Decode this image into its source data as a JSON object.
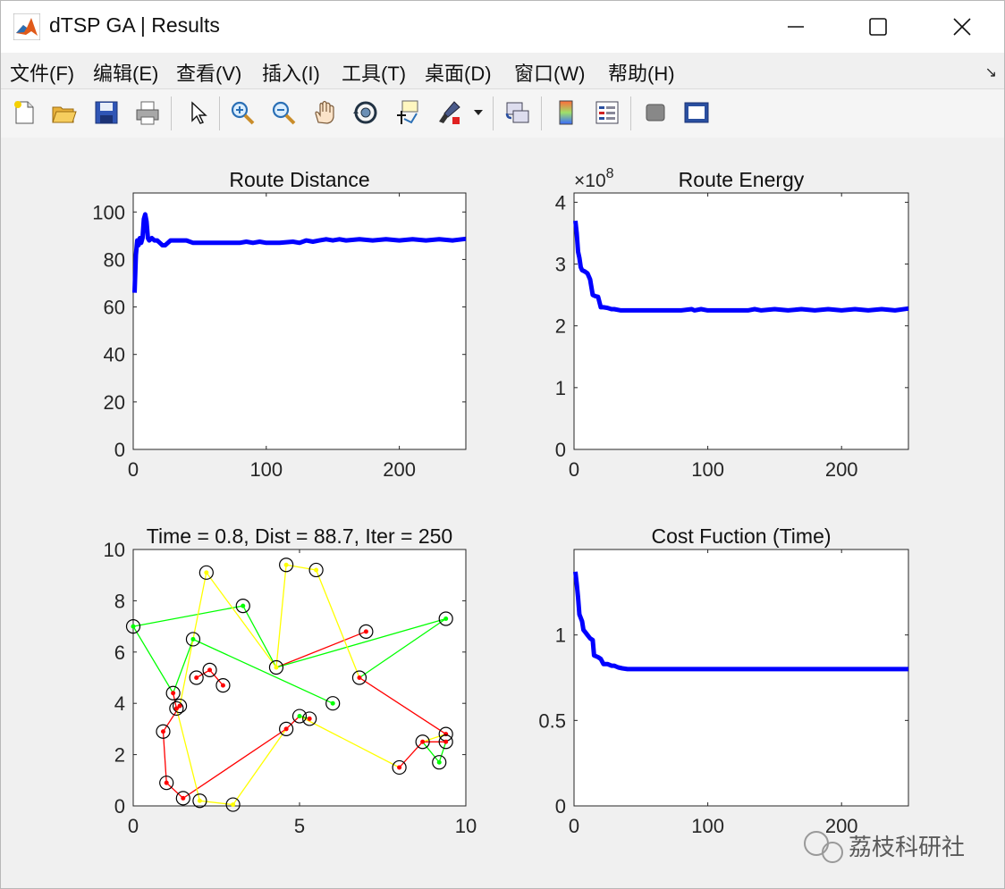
{
  "window": {
    "title": "dTSP GA | Results",
    "controls": {
      "minimize": "—",
      "maximize": "☐",
      "close": "✕"
    }
  },
  "menu": {
    "items": [
      "文件(F)",
      "编辑(E)",
      "查看(V)",
      "插入(I)",
      "工具(T)",
      "桌面(D)",
      "窗口(W)",
      "帮助(H)"
    ],
    "overflow_arrow": "↘"
  },
  "toolbar": {
    "icons": [
      "new-figure-icon",
      "open-file-icon",
      "save-icon",
      "print-icon",
      "pointer-icon",
      "zoom-in-icon",
      "zoom-out-icon",
      "pan-hand-icon",
      "rotate-3d-icon",
      "data-cursor-icon",
      "brush-icon",
      "link-plot-icon",
      "colorbar-icon",
      "legend-icon",
      "hide-plot-tools-icon",
      "show-plot-tools-icon"
    ]
  },
  "colors": {
    "line": "#0000ff",
    "route_red": "#ff0000",
    "route_green": "#00ff00",
    "route_yellow": "#ffff00",
    "axes_bg": "#ffffff"
  },
  "watermark": {
    "text": "荔枝科研社"
  },
  "chart_data": [
    {
      "id": "distance",
      "type": "line",
      "title": "Route Distance",
      "xlim": [
        0,
        250
      ],
      "ylim": [
        0,
        108
      ],
      "xticks": [
        0,
        100,
        200
      ],
      "yticks": [
        0,
        20,
        40,
        60,
        80,
        100
      ],
      "series": [
        {
          "points": [
            [
              1,
              66
            ],
            [
              2,
              82
            ],
            [
              3,
              88
            ],
            [
              4,
              86
            ],
            [
              5,
              89
            ],
            [
              6,
              87
            ],
            [
              7,
              89
            ],
            [
              8,
              97
            ],
            [
              9,
              99
            ],
            [
              10,
              96
            ],
            [
              11,
              89
            ],
            [
              12,
              88
            ],
            [
              14,
              89
            ],
            [
              16,
              88
            ],
            [
              18,
              88
            ],
            [
              20,
              87
            ],
            [
              22,
              86
            ],
            [
              24,
              86
            ],
            [
              26,
              87
            ],
            [
              28,
              88
            ],
            [
              30,
              88
            ],
            [
              35,
              88
            ],
            [
              40,
              88
            ],
            [
              45,
              87
            ],
            [
              50,
              87
            ],
            [
              60,
              87
            ],
            [
              70,
              87
            ],
            [
              80,
              87
            ],
            [
              85,
              87.5
            ],
            [
              90,
              87
            ],
            [
              95,
              87.5
            ],
            [
              100,
              87
            ],
            [
              110,
              87
            ],
            [
              120,
              87.5
            ],
            [
              125,
              87
            ],
            [
              130,
              88
            ],
            [
              135,
              87.5
            ],
            [
              140,
              88
            ],
            [
              145,
              88.5
            ],
            [
              150,
              88
            ],
            [
              155,
              88.5
            ],
            [
              160,
              88
            ],
            [
              170,
              88.5
            ],
            [
              180,
              88
            ],
            [
              190,
              88.5
            ],
            [
              200,
              88
            ],
            [
              210,
              88.5
            ],
            [
              220,
              88
            ],
            [
              230,
              88.5
            ],
            [
              240,
              88
            ],
            [
              250,
              88.7
            ]
          ]
        }
      ]
    },
    {
      "id": "energy",
      "type": "line",
      "title": "Route Energy",
      "exponent_label": "×10",
      "exponent_power": "8",
      "xlim": [
        0,
        250
      ],
      "ylim": [
        0,
        4.15
      ],
      "xticks": [
        0,
        100,
        200
      ],
      "yticks": [
        0,
        1,
        2,
        3,
        4
      ],
      "series": [
        {
          "points": [
            [
              1,
              3.7
            ],
            [
              2,
              3.5
            ],
            [
              3,
              3.2
            ],
            [
              4,
              3.1
            ],
            [
              5,
              2.95
            ],
            [
              6,
              2.9
            ],
            [
              8,
              2.88
            ],
            [
              10,
              2.85
            ],
            [
              12,
              2.75
            ],
            [
              14,
              2.5
            ],
            [
              16,
              2.48
            ],
            [
              18,
              2.47
            ],
            [
              20,
              2.3
            ],
            [
              22,
              2.3
            ],
            [
              25,
              2.29
            ],
            [
              28,
              2.27
            ],
            [
              30,
              2.27
            ],
            [
              35,
              2.25
            ],
            [
              40,
              2.25
            ],
            [
              50,
              2.25
            ],
            [
              60,
              2.25
            ],
            [
              70,
              2.25
            ],
            [
              80,
              2.25
            ],
            [
              88,
              2.27
            ],
            [
              90,
              2.25
            ],
            [
              95,
              2.27
            ],
            [
              100,
              2.25
            ],
            [
              110,
              2.25
            ],
            [
              120,
              2.25
            ],
            [
              130,
              2.25
            ],
            [
              135,
              2.27
            ],
            [
              140,
              2.25
            ],
            [
              150,
              2.27
            ],
            [
              160,
              2.25
            ],
            [
              170,
              2.27
            ],
            [
              180,
              2.25
            ],
            [
              190,
              2.27
            ],
            [
              200,
              2.25
            ],
            [
              210,
              2.27
            ],
            [
              220,
              2.25
            ],
            [
              230,
              2.27
            ],
            [
              240,
              2.25
            ],
            [
              250,
              2.28
            ]
          ]
        }
      ]
    },
    {
      "id": "route",
      "type": "scatter",
      "title": "Time = 0.8, Dist = 88.7, Iter = 250",
      "xlim": [
        0,
        10
      ],
      "ylim": [
        0,
        10
      ],
      "xticks": [
        0,
        5,
        10
      ],
      "yticks": [
        0,
        2,
        4,
        6,
        8,
        10
      ],
      "cities": [
        [
          0,
          7
        ],
        [
          2.2,
          9.1
        ],
        [
          3.3,
          7.8
        ],
        [
          4.6,
          9.4
        ],
        [
          5.5,
          9.2
        ],
        [
          9.4,
          7.3
        ],
        [
          7.0,
          6.8
        ],
        [
          1.8,
          6.5
        ],
        [
          2.3,
          5.3
        ],
        [
          1.9,
          5.0
        ],
        [
          2.7,
          4.7
        ],
        [
          4.3,
          5.4
        ],
        [
          6.8,
          5.0
        ],
        [
          6.0,
          4.0
        ],
        [
          1.2,
          4.4
        ],
        [
          1.4,
          3.9
        ],
        [
          1.3,
          3.8
        ],
        [
          0.9,
          2.9
        ],
        [
          4.6,
          3.0
        ],
        [
          5.0,
          3.5
        ],
        [
          5.3,
          3.4
        ],
        [
          9.4,
          2.8
        ],
        [
          9.4,
          2.5
        ],
        [
          8.7,
          2.5
        ],
        [
          8.0,
          1.5
        ],
        [
          9.2,
          1.7
        ],
        [
          1.0,
          0.9
        ],
        [
          1.5,
          0.3
        ],
        [
          2.0,
          0.2
        ],
        [
          3.0,
          0.05
        ]
      ],
      "segments": [
        {
          "color": "red",
          "path": [
            [
              1.9,
              5.0
            ],
            [
              2.3,
              5.3
            ],
            [
              2.7,
              4.7
            ]
          ]
        },
        {
          "color": "red",
          "path": [
            [
              4.3,
              5.4
            ],
            [
              7.0,
              6.8
            ]
          ]
        },
        {
          "color": "red",
          "path": [
            [
              6.8,
              5.0
            ],
            [
              9.4,
              2.8
            ]
          ]
        },
        {
          "color": "red",
          "path": [
            [
              1.2,
              4.4
            ],
            [
              1.3,
              3.8
            ]
          ]
        },
        {
          "color": "red",
          "path": [
            [
              0.9,
              2.9
            ],
            [
              1.4,
              3.9
            ]
          ]
        },
        {
          "color": "red",
          "path": [
            [
              0.9,
              2.9
            ],
            [
              1.0,
              0.9
            ],
            [
              1.5,
              0.3
            ],
            [
              4.6,
              3.0
            ],
            [
              5.0,
              3.5
            ],
            [
              5.3,
              3.4
            ]
          ]
        },
        {
          "color": "red",
          "path": [
            [
              8.0,
              1.5
            ],
            [
              8.7,
              2.5
            ],
            [
              9.4,
              2.5
            ]
          ]
        },
        {
          "color": "green",
          "path": [
            [
              0,
              7
            ],
            [
              3.3,
              7.8
            ],
            [
              4.3,
              5.4
            ],
            [
              9.4,
              7.3
            ],
            [
              6.8,
              5.0
            ]
          ]
        },
        {
          "color": "green",
          "path": [
            [
              0,
              7
            ],
            [
              1.2,
              4.4
            ],
            [
              1.8,
              6.5
            ],
            [
              6.0,
              4.0
            ]
          ]
        },
        {
          "color": "green",
          "path": [
            [
              8.7,
              2.5
            ],
            [
              9.2,
              1.7
            ],
            [
              9.4,
              2.5
            ]
          ]
        },
        {
          "color": "green",
          "path": [
            [
              5.0,
              3.5
            ],
            [
              5.3,
              3.4
            ]
          ]
        },
        {
          "color": "yellow",
          "path": [
            [
              4.3,
              5.4
            ],
            [
              2.2,
              9.1
            ],
            [
              1.4,
              3.9
            ]
          ]
        },
        {
          "color": "yellow",
          "path": [
            [
              4.3,
              5.4
            ],
            [
              4.6,
              9.4
            ],
            [
              5.5,
              9.2
            ],
            [
              6.8,
              5.0
            ]
          ]
        },
        {
          "color": "yellow",
          "path": [
            [
              1.3,
              3.8
            ],
            [
              2.0,
              0.2
            ],
            [
              3.0,
              0.05
            ],
            [
              4.6,
              3.0
            ]
          ]
        },
        {
          "color": "yellow",
          "path": [
            [
              5.0,
              3.5
            ],
            [
              8.0,
              1.5
            ]
          ]
        },
        {
          "color": "yellow",
          "path": [
            [
              9.4,
              2.8
            ],
            [
              8.7,
              2.5
            ]
          ]
        }
      ],
      "dot_colors": [
        "green",
        "yellow",
        "green",
        "yellow",
        "yellow",
        "green",
        "red",
        "green",
        "red",
        "red",
        "red",
        "yellow",
        "red",
        "green",
        "red",
        "red",
        "red",
        "red",
        "red",
        "green",
        "red",
        "red",
        "red",
        "red",
        "red",
        "green",
        "red",
        "red",
        "yellow",
        "yellow"
      ]
    },
    {
      "id": "cost",
      "type": "line",
      "title": "Cost Fuction (Time)",
      "xlim": [
        0,
        250
      ],
      "ylim": [
        0,
        1.5
      ],
      "xticks": [
        0,
        100,
        200
      ],
      "yticks": [
        0,
        0.5,
        1
      ],
      "series": [
        {
          "points": [
            [
              1,
              1.37
            ],
            [
              2,
              1.3
            ],
            [
              3,
              1.22
            ],
            [
              4,
              1.12
            ],
            [
              5,
              1.1
            ],
            [
              6,
              1.08
            ],
            [
              7,
              1.03
            ],
            [
              8,
              1.02
            ],
            [
              10,
              1.0
            ],
            [
              12,
              0.98
            ],
            [
              14,
              0.97
            ],
            [
              15,
              0.88
            ],
            [
              18,
              0.87
            ],
            [
              20,
              0.86
            ],
            [
              22,
              0.83
            ],
            [
              25,
              0.83
            ],
            [
              28,
              0.82
            ],
            [
              30,
              0.82
            ],
            [
              33,
              0.81
            ],
            [
              36,
              0.805
            ],
            [
              40,
              0.8
            ],
            [
              50,
              0.8
            ],
            [
              100,
              0.8
            ],
            [
              150,
              0.8
            ],
            [
              200,
              0.8
            ],
            [
              250,
              0.8
            ]
          ]
        }
      ]
    }
  ]
}
